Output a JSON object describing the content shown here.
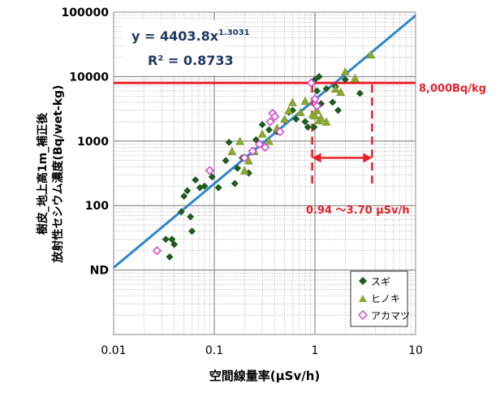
{
  "chart_data": {
    "type": "scatter",
    "title": "",
    "xlabel": "空間線量率(μSv/h)",
    "ylabel_lines": [
      "樹皮_地上高1m_補正後",
      "放射性セシウム濃度(Bq/wet-kg)"
    ],
    "x_scale": "log",
    "y_scale": "log",
    "xlim": [
      0.01,
      10
    ],
    "ylim": [
      1,
      100000
    ],
    "grid": true,
    "x_ticks": [
      {
        "value": 0.01,
        "label": "0.01"
      },
      {
        "value": 0.1,
        "label": "0.1"
      },
      {
        "value": 1,
        "label": "1"
      },
      {
        "value": 10,
        "label": "10"
      }
    ],
    "y_ticks": [
      {
        "value": 10,
        "label": "ND"
      },
      {
        "value": 100,
        "label": "100"
      },
      {
        "value": 1000,
        "label": "1000"
      },
      {
        "value": 10000,
        "label": "10000"
      },
      {
        "value": 100000,
        "label": "100000"
      }
    ],
    "equation": {
      "main": "y = 4403.8x",
      "exponent": "1.3031"
    },
    "r_squared": "R² = 0.8733",
    "trendline": {
      "a": 4403.8,
      "b": 1.3031,
      "color": "#2e86c8"
    },
    "reference_line": {
      "y": 8000,
      "label": "8,000Bq/kg",
      "color": "#e8202a"
    },
    "range_annotation": {
      "x_from": 0.94,
      "x_to": 3.7,
      "label": "0.94 ～3.70 μSv/h",
      "color": "#e8202a"
    },
    "legend_position": "bottom-right",
    "series": [
      {
        "name": "スギ",
        "marker": "diamond",
        "color": "#1f5a1f",
        "points": [
          [
            0.033,
            30
          ],
          [
            0.036,
            16
          ],
          [
            0.038,
            30
          ],
          [
            0.04,
            25
          ],
          [
            0.047,
            80
          ],
          [
            0.05,
            140
          ],
          [
            0.054,
            170
          ],
          [
            0.058,
            67
          ],
          [
            0.06,
            40
          ],
          [
            0.065,
            250
          ],
          [
            0.072,
            190
          ],
          [
            0.08,
            200
          ],
          [
            0.095,
            280
          ],
          [
            0.11,
            190
          ],
          [
            0.13,
            500
          ],
          [
            0.14,
            960
          ],
          [
            0.16,
            220
          ],
          [
            0.17,
            380
          ],
          [
            0.19,
            550
          ],
          [
            0.22,
            320
          ],
          [
            0.26,
            1050
          ],
          [
            0.3,
            1800
          ],
          [
            0.35,
            1500
          ],
          [
            0.42,
            1400
          ],
          [
            0.5,
            2100
          ],
          [
            0.55,
            2800
          ],
          [
            0.6,
            3000
          ],
          [
            0.65,
            2200
          ],
          [
            0.8,
            2000
          ],
          [
            0.85,
            1650
          ],
          [
            0.98,
            1650
          ],
          [
            1.0,
            9000
          ],
          [
            1.05,
            6000
          ],
          [
            1.1,
            10000
          ],
          [
            1.15,
            3800
          ],
          [
            1.3,
            6500
          ],
          [
            1.5,
            4000
          ],
          [
            1.6,
            7000
          ],
          [
            1.7,
            3000
          ],
          [
            2.0,
            9000
          ],
          [
            2.8,
            5500
          ]
        ]
      },
      {
        "name": "ヒノキ",
        "marker": "triangle",
        "color": "#8aa832",
        "points": [
          [
            0.15,
            700
          ],
          [
            0.18,
            1000
          ],
          [
            0.2,
            350
          ],
          [
            0.22,
            500
          ],
          [
            0.25,
            700
          ],
          [
            0.3,
            1300
          ],
          [
            0.35,
            1000
          ],
          [
            0.42,
            1600
          ],
          [
            0.5,
            2200
          ],
          [
            0.55,
            3000
          ],
          [
            0.6,
            4000
          ],
          [
            0.72,
            2800
          ],
          [
            0.8,
            4200
          ],
          [
            0.95,
            2600
          ],
          [
            1.0,
            2500
          ],
          [
            1.05,
            3000
          ],
          [
            1.1,
            2100
          ],
          [
            1.15,
            2300
          ],
          [
            1.3,
            2000
          ],
          [
            1.6,
            6500
          ],
          [
            1.8,
            5800
          ],
          [
            2.0,
            12000
          ],
          [
            2.5,
            9500
          ],
          [
            3.6,
            22000
          ]
        ]
      },
      {
        "name": "アカマツ",
        "marker": "diamond-open",
        "color": "#d44bd4",
        "points": [
          [
            0.027,
            20
          ],
          [
            0.09,
            350
          ],
          [
            0.2,
            550
          ],
          [
            0.24,
            700
          ],
          [
            0.28,
            900
          ],
          [
            0.32,
            800
          ],
          [
            0.36,
            2000
          ],
          [
            0.38,
            2700
          ],
          [
            0.4,
            2400
          ],
          [
            0.45,
            1400
          ],
          [
            0.92,
            8000
          ],
          [
            1.0,
            4500
          ],
          [
            1.05,
            3500
          ]
        ]
      }
    ]
  }
}
